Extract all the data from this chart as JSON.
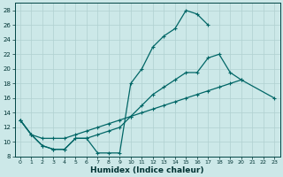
{
  "xlabel": "Humidex (Indice chaleur)",
  "bg_color": "#cce8e8",
  "line_color": "#006666",
  "grid_color": "#b0d0d0",
  "xlim": [
    -0.5,
    23.5
  ],
  "ylim": [
    8,
    29
  ],
  "xticks": [
    0,
    1,
    2,
    3,
    4,
    5,
    6,
    7,
    8,
    9,
    10,
    11,
    12,
    13,
    14,
    15,
    16,
    17,
    18,
    19,
    20,
    21,
    22,
    23
  ],
  "yticks": [
    8,
    10,
    12,
    14,
    16,
    18,
    20,
    22,
    24,
    26,
    28
  ],
  "series1_x": [
    0,
    1,
    2,
    3,
    4,
    5,
    6,
    7,
    8,
    9,
    10,
    11,
    12,
    13,
    14,
    15,
    16,
    17
  ],
  "series1_y": [
    13.0,
    11.0,
    9.5,
    9.0,
    9.0,
    10.5,
    10.5,
    8.5,
    8.5,
    8.5,
    18.0,
    20.0,
    23.0,
    24.5,
    25.5,
    28.0,
    27.5,
    26.0
  ],
  "series2_x": [
    0,
    1,
    2,
    3,
    4,
    5,
    6,
    7,
    8,
    9,
    10,
    11,
    12,
    13,
    14,
    15,
    16,
    17,
    18,
    19,
    20
  ],
  "series2_y": [
    13.0,
    11.0,
    9.5,
    9.0,
    9.0,
    10.5,
    10.5,
    11.0,
    11.5,
    12.0,
    13.5,
    15.0,
    16.5,
    17.5,
    18.5,
    19.5,
    19.5,
    21.5,
    22.0,
    19.5,
    18.5
  ],
  "series3_x": [
    0,
    1,
    2,
    3,
    4,
    5,
    6,
    7,
    8,
    9,
    10,
    11,
    12,
    13,
    14,
    15,
    16,
    17,
    18,
    19,
    20,
    23
  ],
  "series3_y": [
    13.0,
    11.0,
    10.5,
    10.5,
    10.5,
    11.0,
    11.5,
    12.0,
    12.5,
    13.0,
    13.5,
    14.0,
    14.5,
    15.0,
    15.5,
    16.0,
    16.5,
    17.0,
    17.5,
    18.0,
    18.5,
    16.0
  ]
}
